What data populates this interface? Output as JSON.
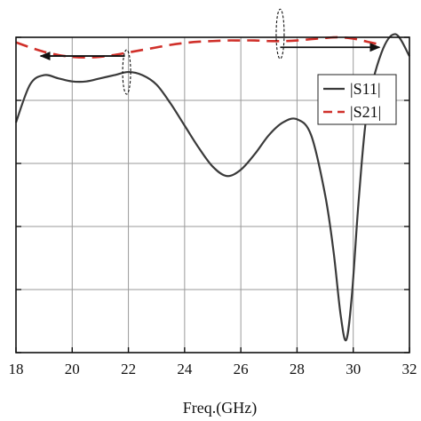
{
  "chart_data": {
    "type": "line",
    "title": "",
    "xlabel": "Freq.(GHz)",
    "ylabel": "",
    "xlim": [
      18,
      32
    ],
    "x_ticks": [
      "18",
      "20",
      "22",
      "24",
      "26",
      "28",
      "30",
      "32"
    ],
    "grid": true,
    "legend_position": "top-right",
    "series": [
      {
        "name": "|S11|",
        "color": "#3a3a3a",
        "dash": "solid",
        "axis": "left",
        "x": [
          18,
          18.5,
          19,
          19.5,
          20,
          20.5,
          21,
          21.5,
          22,
          22.5,
          23,
          23.5,
          24,
          24.5,
          25,
          25.5,
          26,
          26.5,
          27,
          27.5,
          28,
          28.5,
          29,
          29.3,
          29.55,
          29.75,
          29.95,
          30.2,
          30.5,
          31,
          31.5,
          32
        ],
        "y": [
          -22.7,
          -21.5,
          -21.2,
          -21.3,
          -21.4,
          -21.4,
          -21.3,
          -21.2,
          -21.1,
          -21.2,
          -21.5,
          -22.1,
          -22.8,
          -23.5,
          -24.1,
          -24.4,
          -24.2,
          -23.7,
          -23.1,
          -22.7,
          -22.6,
          -23.1,
          -25.0,
          -26.8,
          -28.8,
          -29.6,
          -28.2,
          -25.1,
          -22.3,
          -20.5,
          -19.9,
          -20.6
        ],
        "indicator": "left-axis-arrow"
      },
      {
        "name": "|S21|",
        "color": "#d0302a",
        "dash": "dashed",
        "axis": "right",
        "x": [
          18,
          18.5,
          19,
          19.5,
          20,
          20.5,
          21,
          21.5,
          22,
          22.5,
          23,
          23.5,
          24,
          24.5,
          25,
          25.5,
          26,
          26.5,
          27,
          27.5,
          28,
          28.5,
          29,
          29.5,
          30,
          30.5,
          31
        ],
        "y": [
          -0.08,
          -0.16,
          -0.23,
          -0.28,
          -0.31,
          -0.32,
          -0.31,
          -0.28,
          -0.24,
          -0.2,
          -0.16,
          -0.12,
          -0.09,
          -0.07,
          -0.06,
          -0.05,
          -0.05,
          -0.05,
          -0.06,
          -0.06,
          -0.05,
          -0.03,
          -0.01,
          0.0,
          -0.02,
          -0.07,
          -0.12
        ],
        "indicator": "right-axis-arrow"
      }
    ]
  }
}
